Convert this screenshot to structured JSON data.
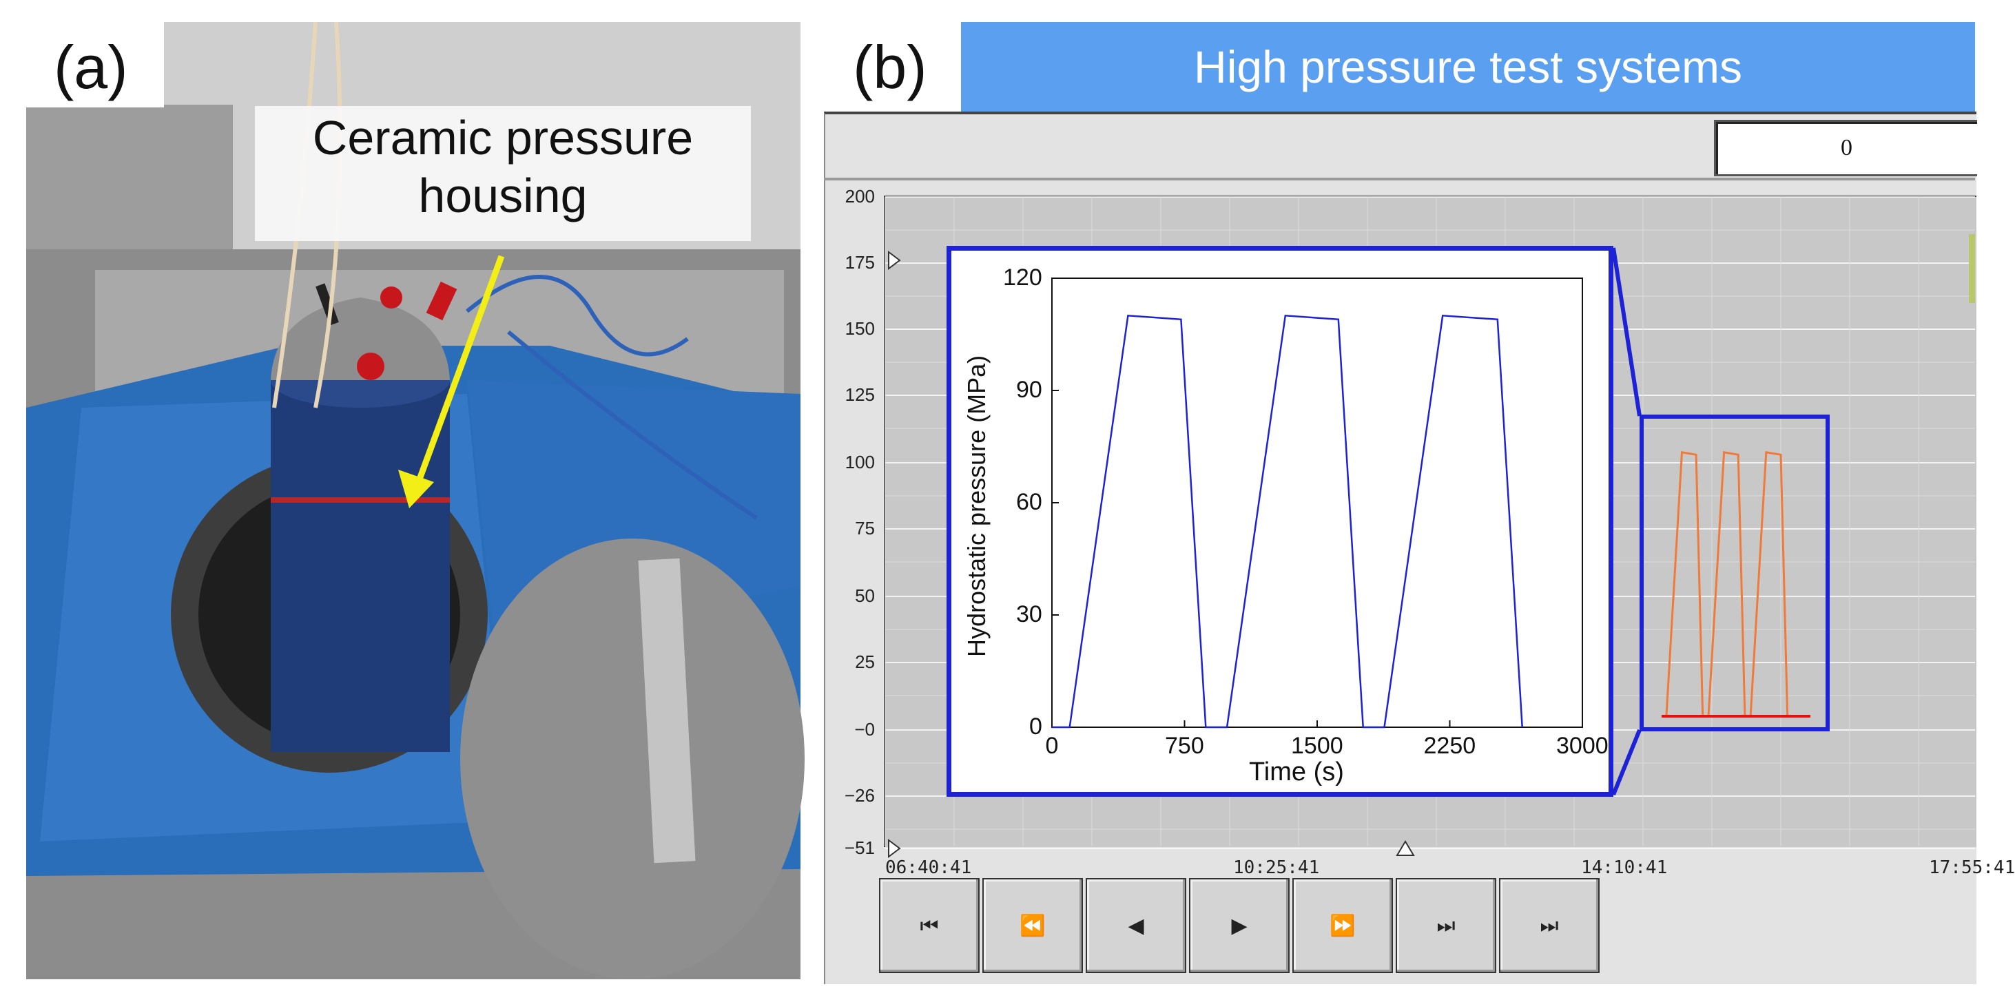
{
  "panel_a": {
    "letter": "(a)",
    "callout": [
      "Ceramic pressure",
      "housing"
    ],
    "colors": {
      "machine_blue": "#2a6db8",
      "arrow": "#f2ee16",
      "floor": "#8a8a8a"
    }
  },
  "panel_b": {
    "letter": "(b)",
    "title": "High pressure test systems",
    "counter_value": "0",
    "trend": {
      "y_ticks": [
        "200",
        "175",
        "150",
        "125",
        "100",
        "75",
        "50",
        "25",
        "−0",
        "−26",
        "−51"
      ],
      "x_ticks": [
        "06:40:41",
        "10:25:41",
        "14:10:41",
        "17:55:41"
      ],
      "trace_color": "#f07a3a",
      "baseline_color": "#e51010"
    },
    "playback_buttons": [
      {
        "id": "first",
        "icon": "skip-to-start-icon",
        "glyph": "⏮"
      },
      {
        "id": "rewind",
        "icon": "rewind-icon",
        "glyph": "⏪"
      },
      {
        "id": "back",
        "icon": "step-back-icon",
        "glyph": "◀"
      },
      {
        "id": "play",
        "icon": "play-icon",
        "glyph": "▶"
      },
      {
        "id": "fast-forward",
        "icon": "fast-forward-icon",
        "glyph": "⏩"
      },
      {
        "id": "last",
        "icon": "skip-to-end-icon",
        "glyph": "⏭"
      },
      {
        "id": "end",
        "icon": "skip-end-icon",
        "glyph": "⏭"
      }
    ]
  },
  "chart_data": {
    "type": "line",
    "xlabel": "Time (s)",
    "ylabel": "Hydrostatic pressure (MPa)",
    "xlim": [
      0,
      3000
    ],
    "ylim": [
      0,
      120
    ],
    "x_ticks": [
      "0",
      "750",
      "1500",
      "2250",
      "3000"
    ],
    "y_ticks": [
      "0",
      "30",
      "60",
      "90",
      "120"
    ],
    "series": [
      {
        "color": "#1d22d6",
        "x": [
          0,
          100,
          430,
          730,
          870,
          990,
          1320,
          1620,
          1760,
          1880,
          2210,
          2520,
          2660
        ],
        "y": [
          0,
          0,
          110,
          109,
          0,
          0,
          110,
          109,
          0,
          0,
          110,
          109,
          0
        ]
      }
    ]
  }
}
